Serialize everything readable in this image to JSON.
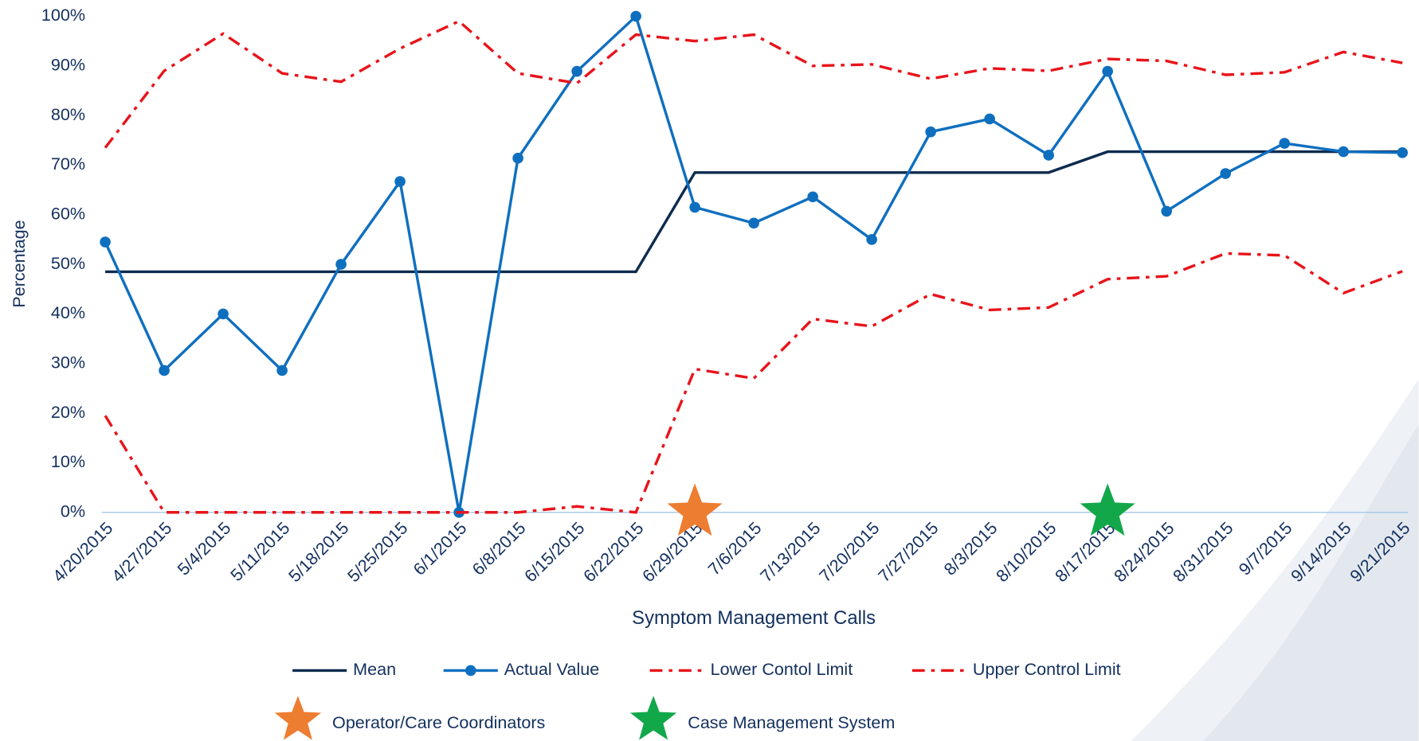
{
  "chart_data": {
    "type": "line",
    "xlabel": "Symptom Management Calls",
    "ylabel": "Percentage",
    "categories": [
      "4/20/2015",
      "4/27/2015",
      "5/4/2015",
      "5/11/2015",
      "5/18/2015",
      "5/25/2015",
      "6/1/2015",
      "6/8/2015",
      "6/15/2015",
      "6/22/2015",
      "6/29/2015",
      "7/6/2015",
      "7/13/2015",
      "7/20/2015",
      "7/27/2015",
      "8/3/2015",
      "8/10/2015",
      "8/17/2015",
      "8/24/2015",
      "8/31/2015",
      "9/7/2015",
      "9/14/2015",
      "9/21/2015"
    ],
    "series": [
      {
        "name": "Mean",
        "color": "#0d2b4e",
        "style": "solid",
        "marker": false,
        "values": [
          48.5,
          48.5,
          48.5,
          48.5,
          48.5,
          48.5,
          48.5,
          48.5,
          48.5,
          48.5,
          68.5,
          68.5,
          68.5,
          68.5,
          68.5,
          68.5,
          68.5,
          72.7,
          72.7,
          72.7,
          72.7,
          72.7,
          72.7
        ]
      },
      {
        "name": "Actual Value",
        "color": "#0f6fbf",
        "style": "solid",
        "marker": true,
        "values": [
          54.5,
          28.6,
          40,
          28.6,
          50,
          66.7,
          0,
          71.4,
          88.9,
          100,
          61.5,
          58.3,
          63.6,
          55,
          76.7,
          79.3,
          72,
          88.9,
          60.7,
          68.3,
          74.4,
          72.7,
          72.5
        ]
      },
      {
        "name": "Lower Contol Limit",
        "color": "#e8141b",
        "style": "dashdot",
        "marker": false,
        "values": [
          19.5,
          0,
          0,
          0,
          0,
          0,
          0,
          0,
          1.2,
          0,
          28.9,
          27,
          39,
          37.5,
          44,
          40.8,
          41.3,
          47,
          47.6,
          52.2,
          51.8,
          44.2,
          48.6
        ]
      },
      {
        "name": "Upper Control Limit",
        "color": "#e8141b",
        "style": "dashdot",
        "marker": false,
        "values": [
          73.5,
          89,
          96.5,
          88.5,
          86.8,
          93.5,
          99,
          88.5,
          86.5,
          96.3,
          95,
          96.3,
          90,
          90.3,
          87.4,
          89.5,
          89,
          91.4,
          91,
          88.2,
          88.7,
          92.8,
          90.6
        ]
      }
    ],
    "annotations": [
      {
        "label": "Operator/Care Coordinators",
        "color": "#ed7d31",
        "category": "6/29/2015",
        "value": 0
      },
      {
        "label": "Case Management System",
        "color": "#12a84a",
        "category": "8/17/2015",
        "value": 0
      }
    ],
    "ylim": [
      0,
      100
    ],
    "yticks": [
      {
        "value": 0,
        "label": "0%"
      },
      {
        "value": 10,
        "label": "10%"
      },
      {
        "value": 20,
        "label": "20%"
      },
      {
        "value": 30,
        "label": "30%"
      },
      {
        "value": 40,
        "label": "40%"
      },
      {
        "value": 50,
        "label": "50%"
      },
      {
        "value": 60,
        "label": "60%"
      },
      {
        "value": 70,
        "label": "70%"
      },
      {
        "value": 80,
        "label": "80%"
      },
      {
        "value": 90,
        "label": "90%"
      },
      {
        "value": 100,
        "label": "100%"
      }
    ],
    "grid": false,
    "legend": "bottom"
  }
}
